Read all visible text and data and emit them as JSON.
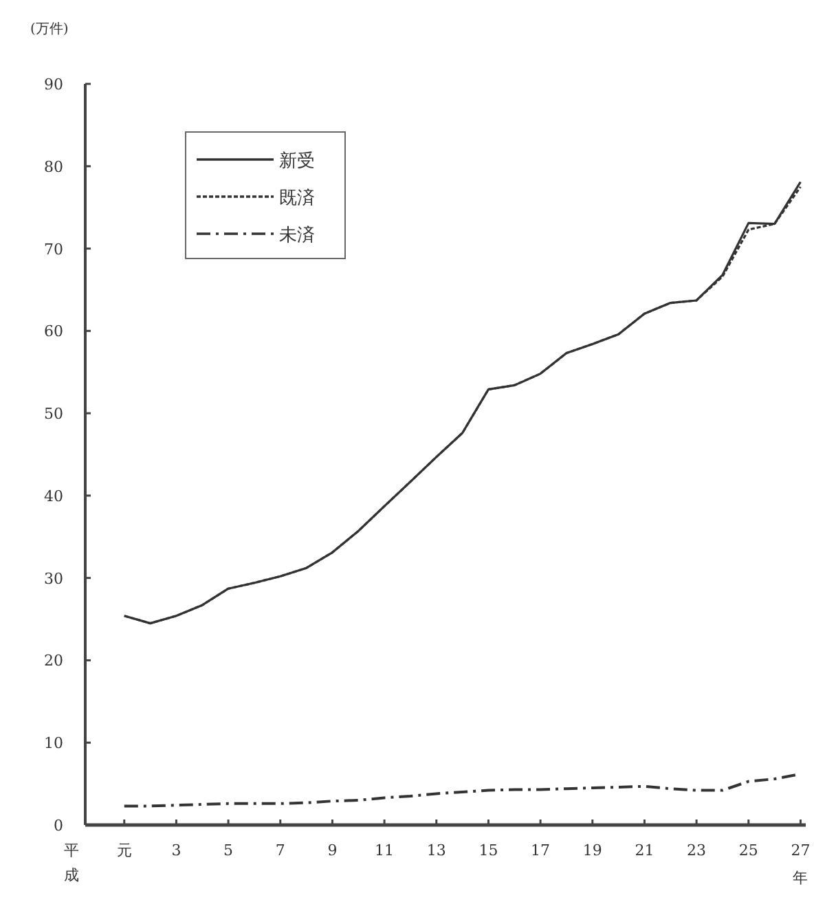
{
  "chart_data": {
    "type": "line",
    "ylabel": "(万件)",
    "xlabel": "平成",
    "categories": [
      "元",
      null,
      "3",
      null,
      "5",
      null,
      "7",
      null,
      "9",
      null,
      "11",
      null,
      "13",
      null,
      "15",
      null,
      "17",
      null,
      "19",
      null,
      "21",
      null,
      "23",
      null,
      "25",
      null,
      "27"
    ],
    "series": [
      {
        "name": "新受",
        "color": "#333333",
        "line_style": "solid",
        "values": [
          25.4,
          24.5,
          25.4,
          26.7,
          28.7,
          29.4,
          30.2,
          31.2,
          33.1,
          35.7,
          38.7,
          41.7,
          44.7,
          47.6,
          52.9,
          53.4,
          54.8,
          57.3,
          58.4,
          59.6,
          62.1,
          63.4,
          63.7,
          66.8,
          73.1,
          73.0,
          78.1
        ]
      },
      {
        "name": "既済",
        "color": "#333333",
        "line_style": "dashed",
        "values": [
          25.4,
          24.5,
          25.4,
          26.7,
          28.7,
          29.4,
          30.2,
          31.2,
          33.1,
          35.7,
          38.7,
          41.7,
          44.7,
          47.6,
          52.9,
          53.4,
          54.8,
          57.3,
          58.4,
          59.6,
          62.1,
          63.4,
          63.7,
          66.6,
          72.3,
          73.0,
          77.5
        ]
      },
      {
        "name": "未済",
        "color": "#333333",
        "line_style": "dashdot",
        "values": [
          2.3,
          2.3,
          2.4,
          2.5,
          2.6,
          2.6,
          2.6,
          2.7,
          2.9,
          3.0,
          3.3,
          3.5,
          3.8,
          4.0,
          4.2,
          4.3,
          4.3,
          4.4,
          4.5,
          4.6,
          4.7,
          4.4,
          4.2,
          4.2,
          5.3,
          5.6,
          6.2
        ]
      }
    ],
    "ylim": [
      0,
      90
    ],
    "yticks": [
      0,
      10,
      20,
      30,
      40,
      50,
      60,
      70,
      80,
      90
    ],
    "legend": "top left",
    "annotations": [
      "年"
    ]
  }
}
